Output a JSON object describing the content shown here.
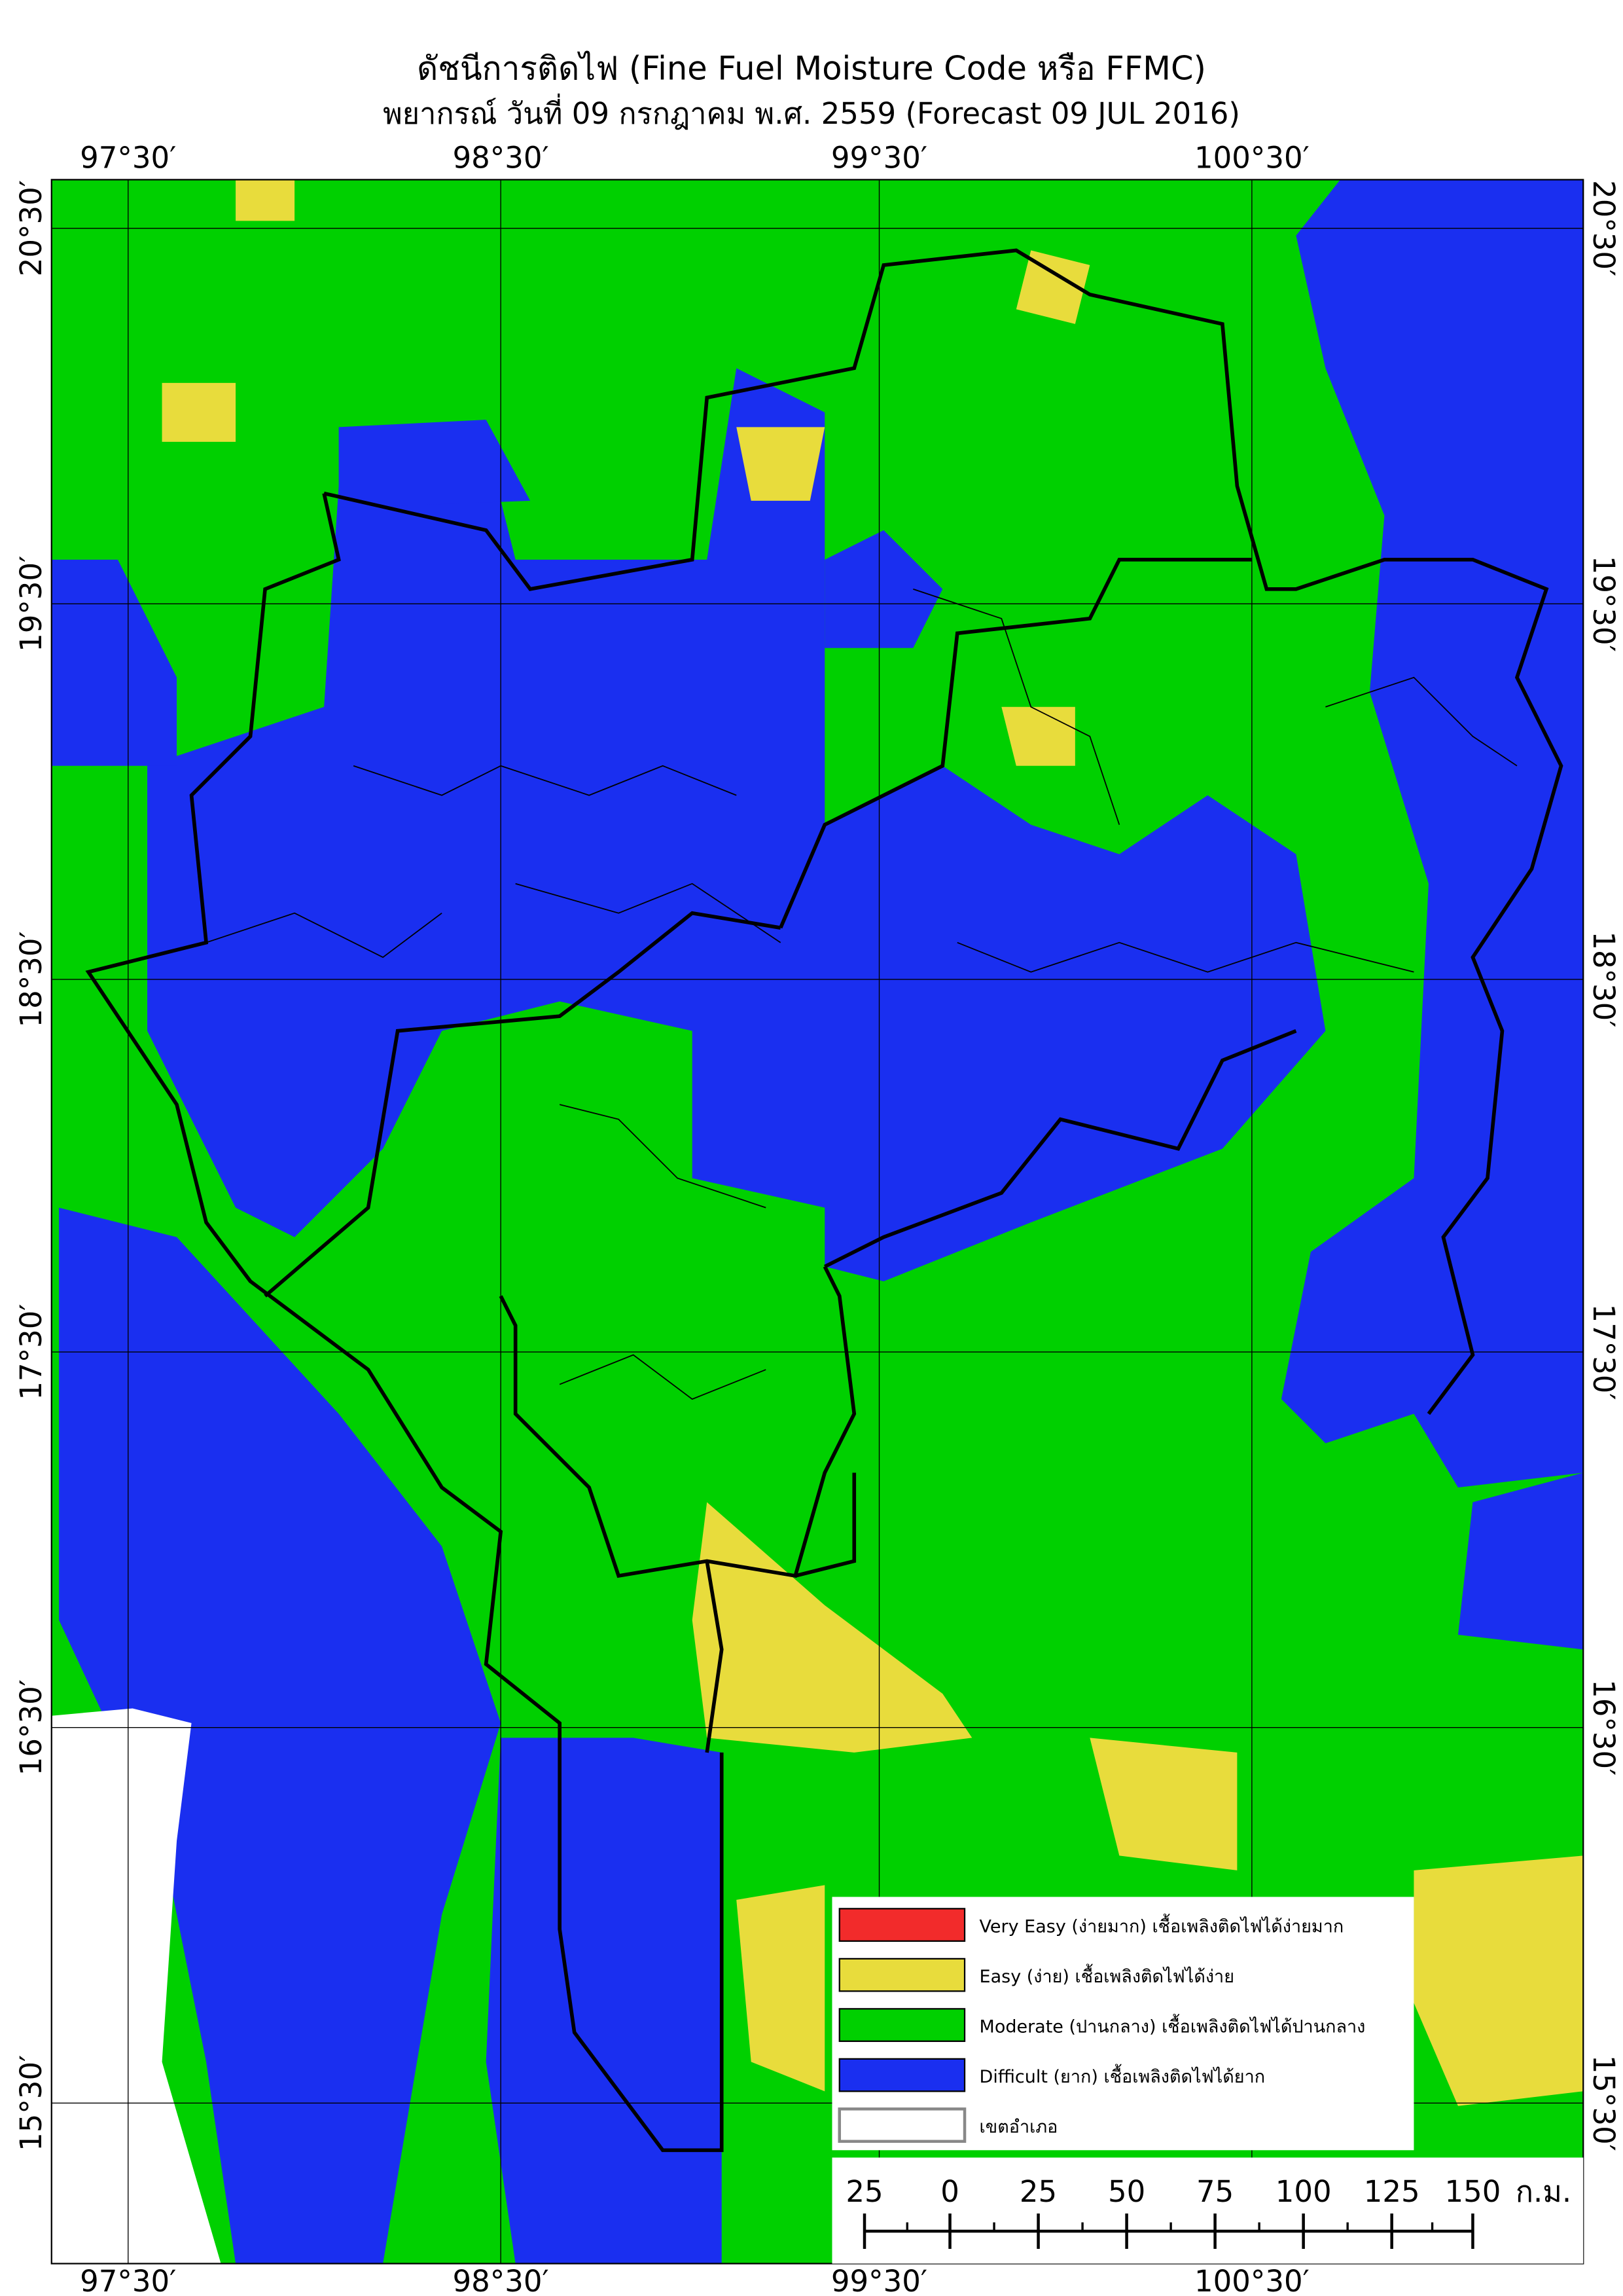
{
  "header": {
    "title": "ดัชนีการติดไฟ (Fine Fuel Moisture Code หรือ FFMC)",
    "subtitle": "พยากรณ์ วันที่ 09 กรกฎาคม พ.ศ. 2559 (Forecast 09 JUL 2016)"
  },
  "map": {
    "longitude_labels": [
      "97°30′",
      "98°30′",
      "99°30′",
      "100°30′"
    ],
    "latitude_labels": [
      "20°30′",
      "19°30′",
      "18°30′",
      "17°30′",
      "16°30′",
      "15°30′"
    ]
  },
  "legend": {
    "items": [
      "Very Easy (ง่ายมาก) เชื้อเพลิงติดไฟได้ง่ายมาก",
      "Easy (ง่าย) เชื้อเพลิงติดไฟได้ง่าย",
      "Moderate (ปานกลาง) เชื้อเพลิงติดไฟได้ปานกลาง",
      "Difficult (ยาก) เชื้อเพลิงติดไฟได้ยาก",
      "เขตอำเภอ"
    ]
  },
  "scale_bar": {
    "labels": [
      "25",
      "0",
      "25",
      "50",
      "75",
      "100",
      "125",
      "150"
    ],
    "unit": "ก.ม."
  }
}
